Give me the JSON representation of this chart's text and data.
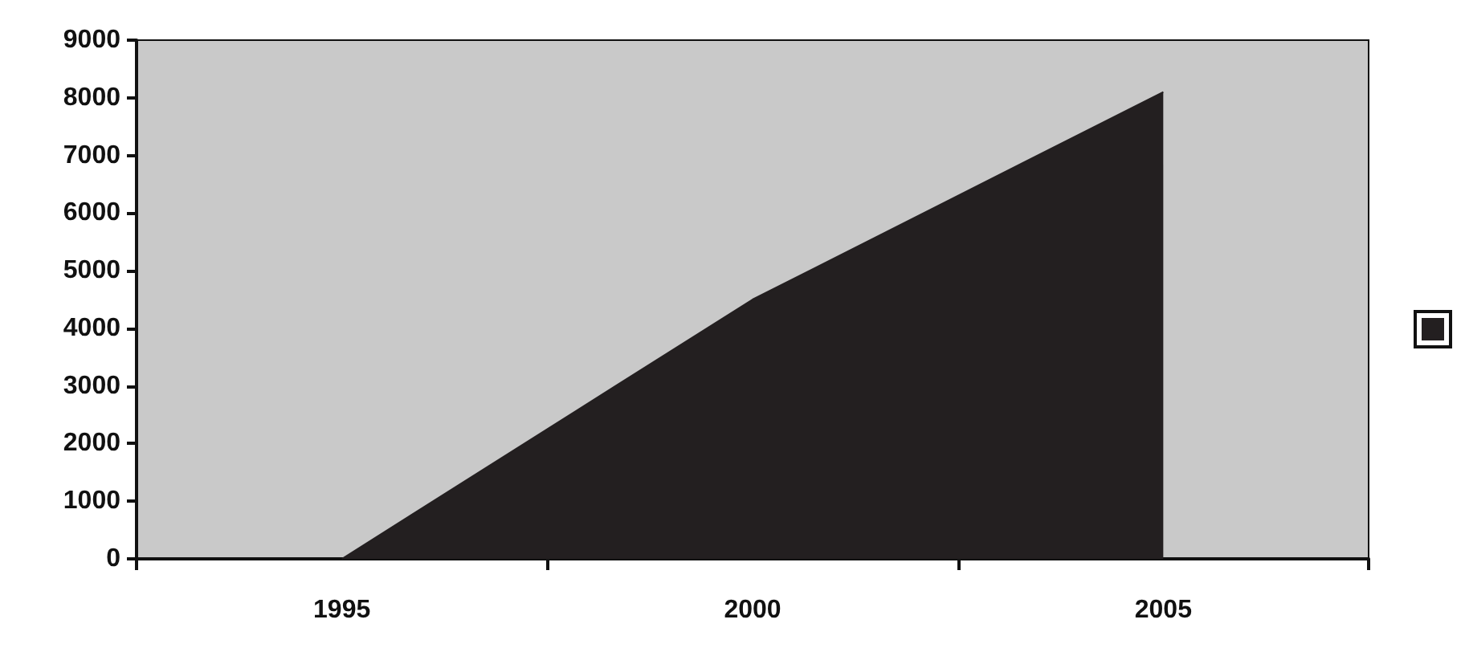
{
  "chart_data": {
    "type": "area",
    "categories": [
      "1995",
      "2000",
      "2005"
    ],
    "series": [
      {
        "color": "#231f20",
        "values": [
          0,
          4500,
          8100
        ]
      }
    ],
    "ylim": [
      0,
      9000
    ],
    "yticks": [
      0,
      1000,
      2000,
      3000,
      4000,
      5000,
      6000,
      7000,
      8000,
      9000
    ],
    "grid": false,
    "marker": "none"
  }
}
